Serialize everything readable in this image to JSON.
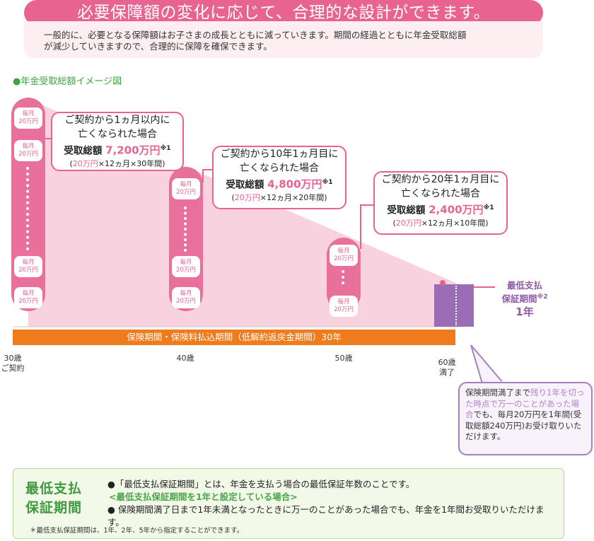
{
  "header": {
    "title": "必要保障額の変化に応じて、合理的な設計ができます。",
    "intro_line1": "一般的に、必要となる保障額はお子さまの成長とともに減っていきます。期間の経過とともに年金受取総額",
    "intro_line2": "が減少していきますので、合理的に保障を確保できます。"
  },
  "section_label": "●年金受取総額イメージ図",
  "coin": {
    "top": "毎月",
    "bottom": "20万円"
  },
  "callouts": [
    {
      "head1": "ご契約から1ヵ月以内に",
      "head2": "亡くなられた場合",
      "total_label": "受取総額",
      "amount": "7,200万円",
      "note": "※1",
      "sub_open": "(",
      "sub_pink": "20万円",
      "sub_rest": "×12ヵ月×30年間)"
    },
    {
      "head1": "ご契約から10年1ヵ月目に",
      "head2": "亡くなられた場合",
      "total_label": "受取総額",
      "amount": "4,800万円",
      "note": "※1",
      "sub_open": "(",
      "sub_pink": "20万円",
      "sub_rest": "×12ヵ月×20年間)"
    },
    {
      "head1": "ご契約から20年1ヵ月目に",
      "head2": "亡くなられた場合",
      "total_label": "受取総額",
      "amount": "2,400万円",
      "note": "※1",
      "sub_open": "(",
      "sub_pink": "20万円",
      "sub_rest": "×12ヵ月×10年間)"
    }
  ],
  "min_period": {
    "line1": "最低支払",
    "line2": "保証期間",
    "note": "※2",
    "value": "1年"
  },
  "premium_bar": "保険期間・保険料払込期間（低解約返戻金期間）30年",
  "ages": [
    {
      "age": "30歳",
      "sub": "ご契約"
    },
    {
      "age": "40歳",
      "sub": ""
    },
    {
      "age": "50歳",
      "sub": ""
    },
    {
      "age": "60歳",
      "sub": "満了"
    }
  ],
  "purple_note": {
    "p1": "保険期間満了まで",
    "p2": "残り1年を切った時点で万一のことがあった場合",
    "p3": "でも、毎月20万円を1年間(受取総額240万円)お受け取りいただけます。"
  },
  "bottom": {
    "heading1": "最低支払",
    "heading2": "保証期間",
    "line1": "●「最低支払保証期間」とは、年金を支払う場合の最低保証年数のことです。",
    "line2": "<最低支払保証期間を1年と設定している場合>",
    "line3": "● 保険期間満了日まで1年未満となったときに万一のことがあった場合でも、年金を1年間お受取りいただけます。",
    "footnote": "＊最低支払保証期間は、1年、2年、5年から指定することができます。"
  },
  "colors": {
    "pink": "#e8638f",
    "orange": "#ef7b1c",
    "purple": "#a580bf",
    "green": "#3f9a3f"
  }
}
